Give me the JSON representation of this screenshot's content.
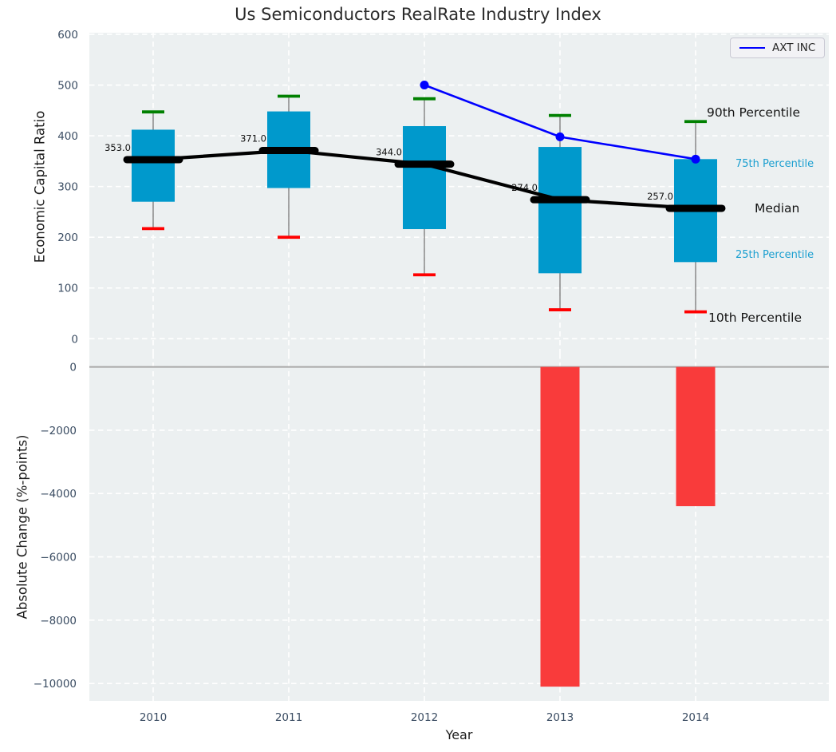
{
  "title": "Us Semiconductors RealRate Industry Index",
  "legend": {
    "label": "AXT INC"
  },
  "colors": {
    "panel_bg": "#ecf0f1",
    "grid": "#ffffff",
    "box_fill": "#0099cc",
    "whisker": "#7f7f7f",
    "cap_90": "#008000",
    "cap_10": "#ff0000",
    "median": "#000000",
    "axt_line": "#0000ff",
    "bar_negative": "#f93b3b",
    "zero_line": "#a8a8a8",
    "tick_text": "#3b4d63",
    "annotation_accent": "#1b9fd0"
  },
  "chart_data": [
    {
      "type": "box",
      "title": "Us Semiconductors RealRate Industry Index",
      "ylabel": "Economic Capital Ratio",
      "ylim": [
        0,
        600
      ],
      "ytick_values": [
        0,
        100,
        200,
        300,
        400,
        500,
        600
      ],
      "ytick_labels": [
        "0",
        "100",
        "200",
        "300",
        "400",
        "500",
        "600"
      ],
      "categories": [
        "2010",
        "2011",
        "2012",
        "2013",
        "2014"
      ],
      "grid": true,
      "legend_position": "upper right",
      "boxes": [
        {
          "year": "2010",
          "p10": 217,
          "p25": 270,
          "median": 353,
          "p75": 412,
          "p90": 447
        },
        {
          "year": "2011",
          "p10": 200,
          "p25": 297,
          "median": 371,
          "p75": 448,
          "p90": 478
        },
        {
          "year": "2012",
          "p10": 126,
          "p25": 216,
          "median": 344,
          "p75": 419,
          "p90": 473
        },
        {
          "year": "2013",
          "p10": 57,
          "p25": 129,
          "median": 274,
          "p75": 378,
          "p90": 440
        },
        {
          "year": "2014",
          "p10": 53,
          "p25": 151,
          "median": 257,
          "p75": 354,
          "p90": 428
        }
      ],
      "median_labels": [
        "353.0",
        "371.0",
        "344.0",
        "274.0",
        "257.0"
      ],
      "series": [
        {
          "name": "AXT INC",
          "points": [
            {
              "x": "2012",
              "y": 500
            },
            {
              "x": "2013",
              "y": 398
            },
            {
              "x": "2014",
              "y": 354
            }
          ]
        }
      ],
      "annotations": [
        {
          "label": "90th Percentile",
          "style": "dark"
        },
        {
          "label": "75th Percentile",
          "style": "accent"
        },
        {
          "label": "Median",
          "style": "dark"
        },
        {
          "label": "25th Percentile",
          "style": "accent"
        },
        {
          "label": "10th Percentile",
          "style": "dark"
        }
      ]
    },
    {
      "type": "bar",
      "xlabel": "Year",
      "ylabel": "Absolute Change (%-points)",
      "ylim": [
        -10500,
        400
      ],
      "ytick_values": [
        0,
        -2000,
        -4000,
        -6000,
        -8000,
        -10000
      ],
      "ytick_labels": [
        "0",
        "−2000",
        "−4000",
        "−6000",
        "−8000",
        "−10000"
      ],
      "categories": [
        "2010",
        "2011",
        "2012",
        "2013",
        "2014"
      ],
      "values": [
        null,
        null,
        null,
        -10100,
        -4400
      ],
      "grid": true
    }
  ]
}
